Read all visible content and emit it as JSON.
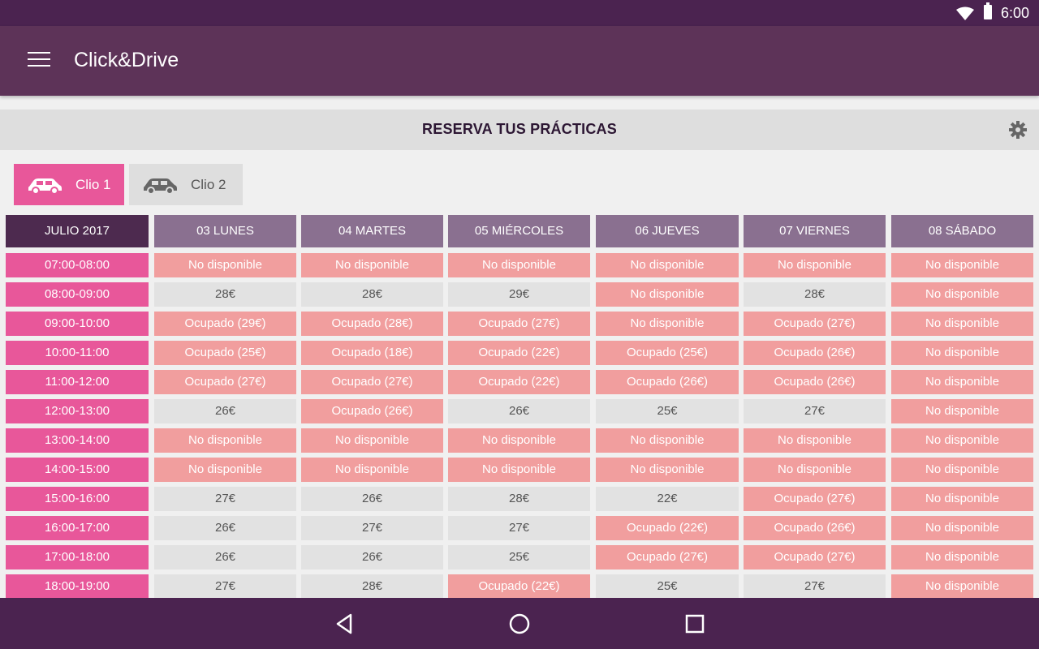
{
  "status_bar": {
    "time": "6:00"
  },
  "app_bar": {
    "title": "Click&Drive"
  },
  "section": {
    "title": "RESERVA TUS PRÁCTICAS"
  },
  "cars": [
    {
      "label": "Clio 1",
      "active": true
    },
    {
      "label": "Clio 2",
      "active": false
    }
  ],
  "schedule": {
    "month_label": "JULIO 2017",
    "days": [
      "03 LUNES",
      "04 MARTES",
      "05 MIÉRCOLES",
      "06 JUEVES",
      "07 VIERNES",
      "08 SÁBADO"
    ],
    "rows": [
      {
        "time": "07:00-08:00",
        "slots": [
          "No disponible",
          "No disponible",
          "No disponible",
          "No disponible",
          "No disponible",
          "No disponible"
        ]
      },
      {
        "time": "08:00-09:00",
        "slots": [
          "28€",
          "28€",
          "29€",
          "No disponible",
          "28€",
          "No disponible"
        ]
      },
      {
        "time": "09:00-10:00",
        "slots": [
          "Ocupado (29€)",
          "Ocupado (28€)",
          "Ocupado (27€)",
          "No disponible",
          "Ocupado (27€)",
          "No disponible"
        ]
      },
      {
        "time": "10:00-11:00",
        "slots": [
          "Ocupado (25€)",
          "Ocupado (18€)",
          "Ocupado (22€)",
          "Ocupado (25€)",
          "Ocupado (26€)",
          "No disponible"
        ]
      },
      {
        "time": "11:00-12:00",
        "slots": [
          "Ocupado (27€)",
          "Ocupado (27€)",
          "Ocupado (22€)",
          "Ocupado (26€)",
          "Ocupado (26€)",
          "No disponible"
        ]
      },
      {
        "time": "12:00-13:00",
        "slots": [
          "26€",
          "Ocupado (26€)",
          "26€",
          "25€",
          "27€",
          "No disponible"
        ]
      },
      {
        "time": "13:00-14:00",
        "slots": [
          "No disponible",
          "No disponible",
          "No disponible",
          "No disponible",
          "No disponible",
          "No disponible"
        ]
      },
      {
        "time": "14:00-15:00",
        "slots": [
          "No disponible",
          "No disponible",
          "No disponible",
          "No disponible",
          "No disponible",
          "No disponible"
        ]
      },
      {
        "time": "15:00-16:00",
        "slots": [
          "27€",
          "26€",
          "28€",
          "22€",
          "Ocupado (27€)",
          "No disponible"
        ]
      },
      {
        "time": "16:00-17:00",
        "slots": [
          "26€",
          "27€",
          "27€",
          "Ocupado (22€)",
          "Ocupado (26€)",
          "No disponible"
        ]
      },
      {
        "time": "17:00-18:00",
        "slots": [
          "26€",
          "26€",
          "25€",
          "Ocupado (27€)",
          "Ocupado (27€)",
          "No disponible"
        ]
      },
      {
        "time": "18:00-19:00",
        "slots": [
          "27€",
          "28€",
          "Ocupado (22€)",
          "25€",
          "27€",
          "No disponible"
        ]
      }
    ]
  },
  "colors": {
    "brand_dark": "#4b2350",
    "app_bar": "#5d3358",
    "accent_pink": "#e8579a",
    "slot_unavailable": "#f19e9e",
    "slot_free": "#e2e2e2"
  },
  "icons": [
    "menu-icon",
    "gear-icon",
    "car-icon",
    "wifi-icon",
    "battery-icon",
    "back-icon",
    "home-icon",
    "recents-icon"
  ]
}
